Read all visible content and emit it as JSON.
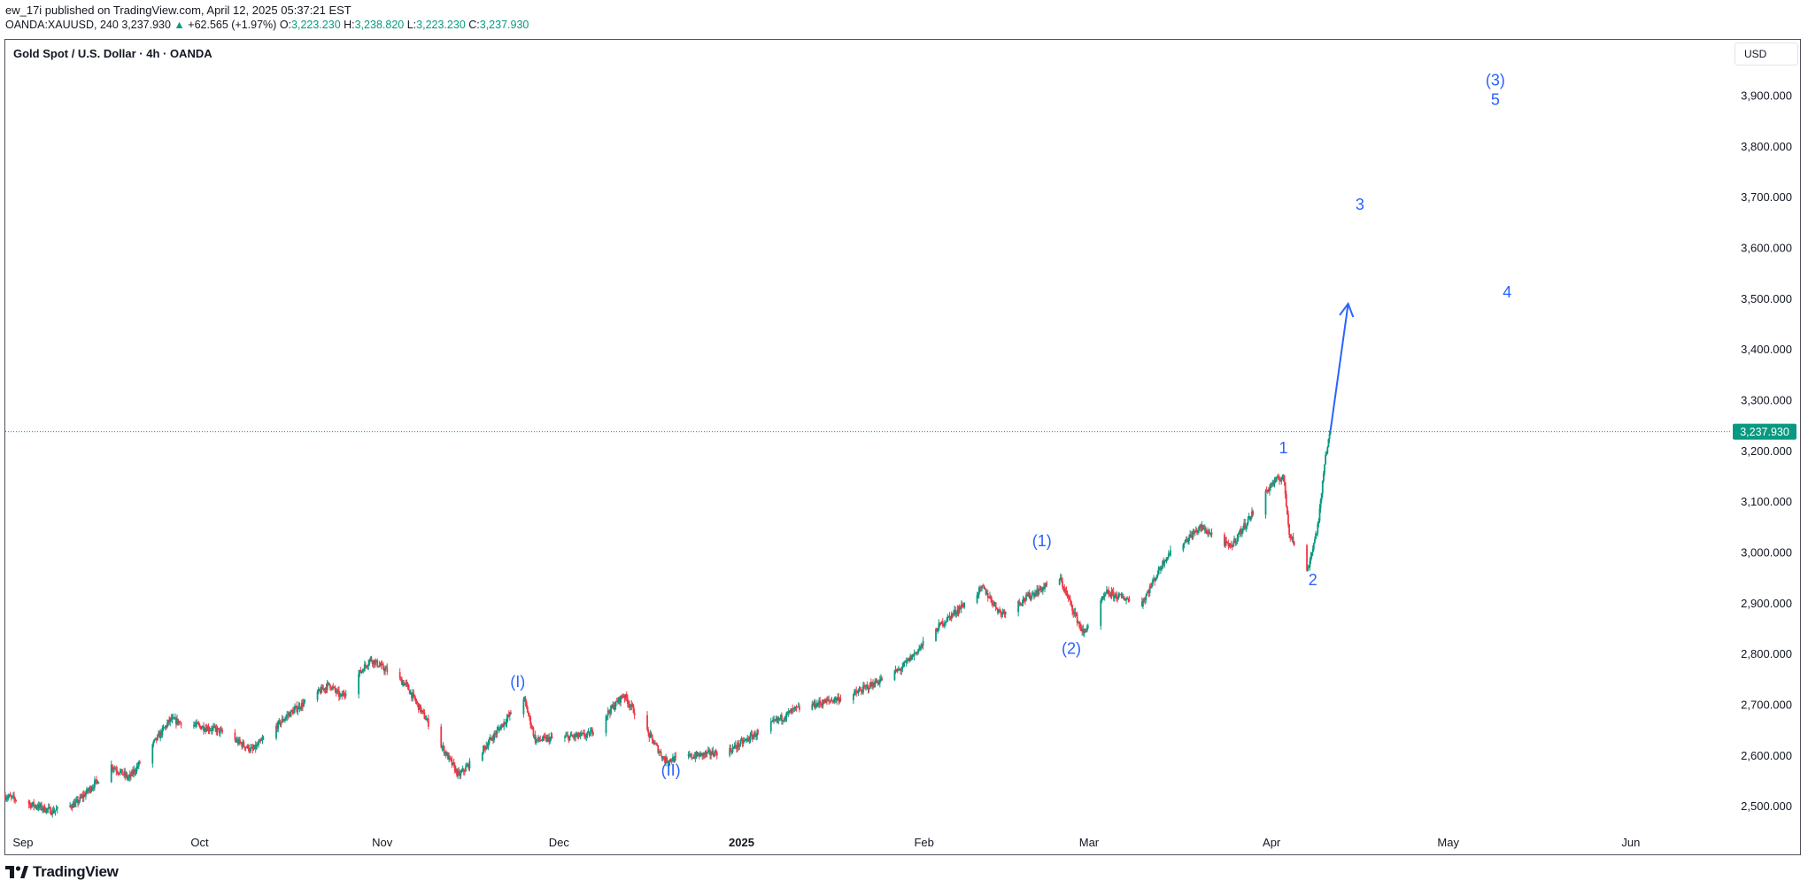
{
  "header": {
    "publisher": "ew_17i published on TradingView.com, April 12, 2025 05:37:21 EST",
    "symbol_line": {
      "symbol": "OANDA:XAUUSD, 240",
      "last": "3,237.930",
      "arrow": "▲",
      "change": "+62.565 (+1.97%)",
      "o_label": "O:",
      "o_value": "3,223.230",
      "h_label": "H:",
      "h_value": "3,238.820",
      "l_label": "L:",
      "l_value": "3,223.230",
      "c_label": "C:",
      "c_value": "3,237.930"
    }
  },
  "chart_title": "Gold Spot / U.S. Dollar · 4h · OANDA",
  "currency": "USD",
  "footer": {
    "brand": "TradingView"
  },
  "colors": {
    "up": "#089981",
    "down": "#f23645",
    "wave": "#2962ff",
    "price_tag": "#089981"
  },
  "chart_data": {
    "type": "candlestick",
    "title": "Gold Spot / U.S. Dollar · 4h · OANDA",
    "y_ticks": [
      2500,
      2600,
      2700,
      2800,
      2900,
      3000,
      3100,
      3200,
      3300,
      3400,
      3500,
      3600,
      3700,
      3800,
      3900
    ],
    "y_tick_labels": [
      "2,500.000",
      "2,600.000",
      "2,700.000",
      "2,800.000",
      "2,900.000",
      "3,000.000",
      "3,100.000",
      "3,200.000",
      "3,300.000",
      "3,400.000",
      "3,500.000",
      "3,600.000",
      "3,700.000",
      "3,800.000",
      "3,900.000"
    ],
    "ylim": [
      2440,
      4010
    ],
    "x_range": [
      "2024-08-29",
      "2025-06-18"
    ],
    "x_ticks": [
      {
        "date": "2024-09-01",
        "label": "Sep",
        "bold": false
      },
      {
        "date": "2024-10-01",
        "label": "Oct",
        "bold": false
      },
      {
        "date": "2024-11-01",
        "label": "Nov",
        "bold": false
      },
      {
        "date": "2024-12-01",
        "label": "Dec",
        "bold": false
      },
      {
        "date": "2025-01-01",
        "label": "2025",
        "bold": true
      },
      {
        "date": "2025-02-01",
        "label": "Feb",
        "bold": false
      },
      {
        "date": "2025-03-01",
        "label": "Mar",
        "bold": false
      },
      {
        "date": "2025-04-01",
        "label": "Apr",
        "bold": false
      },
      {
        "date": "2025-05-01",
        "label": "May",
        "bold": false
      },
      {
        "date": "2025-06-01",
        "label": "Jun",
        "bold": false
      }
    ],
    "price_path": [
      [
        "2024-08-29",
        2520
      ],
      [
        "2024-09-06",
        2490
      ],
      [
        "2024-09-10",
        2505
      ],
      [
        "2024-09-16",
        2580
      ],
      [
        "2024-09-19",
        2555
      ],
      [
        "2024-09-26",
        2670
      ],
      [
        "2024-10-04",
        2650
      ],
      [
        "2024-10-10",
        2610
      ],
      [
        "2024-10-16",
        2680
      ],
      [
        "2024-10-23",
        2740
      ],
      [
        "2024-10-25",
        2715
      ],
      [
        "2024-10-30",
        2790
      ],
      [
        "2024-11-05",
        2740
      ],
      [
        "2024-11-08",
        2680
      ],
      [
        "2024-11-14",
        2560
      ],
      [
        "2024-11-18",
        2610
      ],
      [
        "2024-11-25",
        2715
      ],
      [
        "2024-11-27",
        2630
      ],
      [
        "2024-12-06",
        2640
      ],
      [
        "2024-12-12",
        2720
      ],
      [
        "2024-12-19",
        2590
      ],
      [
        "2024-12-30",
        2610
      ],
      [
        "2025-01-10",
        2690
      ],
      [
        "2025-01-20",
        2720
      ],
      [
        "2025-01-28",
        2770
      ],
      [
        "2025-02-04",
        2860
      ],
      [
        "2025-02-11",
        2930
      ],
      [
        "2025-02-14",
        2880
      ],
      [
        "2025-02-24",
        2950
      ],
      [
        "2025-02-28",
        2840
      ],
      [
        "2025-03-04",
        2920
      ],
      [
        "2025-03-10",
        2900
      ],
      [
        "2025-03-14",
        2990
      ],
      [
        "2025-03-20",
        3050
      ],
      [
        "2025-03-25",
        3010
      ],
      [
        "2025-04-01",
        3135
      ],
      [
        "2025-04-03",
        3150
      ],
      [
        "2025-04-04",
        3040
      ],
      [
        "2025-04-07",
        2960
      ],
      [
        "2025-04-09",
        3060
      ],
      [
        "2025-04-10",
        3180
      ],
      [
        "2025-04-11",
        3237.93
      ]
    ],
    "last_price": 3237.93,
    "last_price_label": "3,237.930",
    "projection": {
      "from": [
        "2025-04-11",
        3240
      ],
      "to": [
        "2025-04-14",
        3490
      ]
    },
    "wave_labels": [
      {
        "text": "(I)",
        "date": "2024-11-24",
        "price": 2735
      },
      {
        "text": "(II)",
        "date": "2024-12-20",
        "price": 2560
      },
      {
        "text": "(1)",
        "date": "2025-02-21",
        "price": 3012
      },
      {
        "text": "(2)",
        "date": "2025-02-26",
        "price": 2800
      },
      {
        "text": "1",
        "date": "2025-04-03",
        "price": 3195
      },
      {
        "text": "2",
        "date": "2025-04-08",
        "price": 2935
      },
      {
        "text": "3",
        "date": "2025-04-16",
        "price": 3675
      },
      {
        "text": "4",
        "date": "2025-05-11",
        "price": 3502
      },
      {
        "text": "(3)",
        "date": "2025-05-09",
        "price": 3920
      },
      {
        "text": "5",
        "date": "2025-05-09",
        "price": 3882
      }
    ]
  }
}
